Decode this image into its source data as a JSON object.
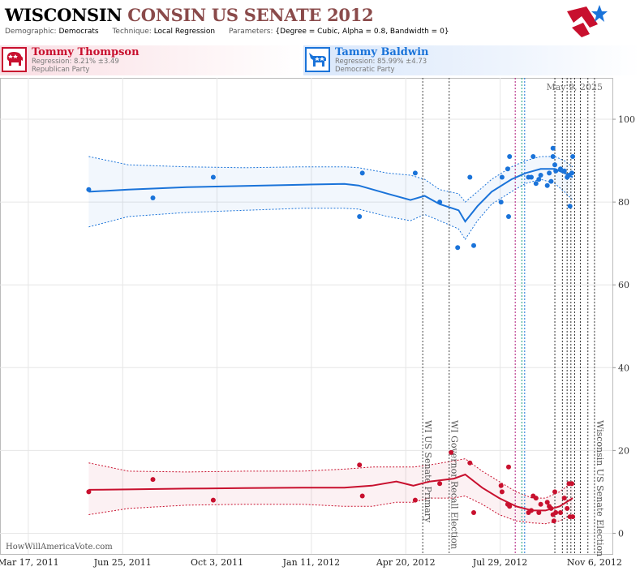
{
  "header": {
    "title_state": "WISCONSIN",
    "title_rest": "CONSIN US SENATE 2012",
    "demographic_label": "Demographic:",
    "demographic_value": "Democrats",
    "technique_label": "Technique:",
    "technique_value": "Local Regression",
    "parameters_label": "Parameters:",
    "parameters_value": "{Degree = Cubic, Alpha = 0.8, Bandwidth = 0}"
  },
  "candidates": {
    "republican": {
      "name": "Tommy Thompson",
      "regression": "Regression: 8.21% ±3.49",
      "party": "Republican Party",
      "color": "#c8102e"
    },
    "democrat": {
      "name": "Tammy Baldwin",
      "regression": "Regression: 85.99% ±4.73",
      "party": "Democratic Party",
      "color": "#1a73d9"
    }
  },
  "date_stamp": "May 9, 2025",
  "footer": {
    "brand": "HowWillAmericaVote.com"
  },
  "chart_data": {
    "type": "scatter",
    "x_axis": {
      "type": "date",
      "range": [
        "2011-02-15",
        "2012-11-25"
      ],
      "ticks": [
        {
          "date": "2011-03-17",
          "label": "Mar 17, 2011"
        },
        {
          "date": "2011-06-25",
          "label": "Jun 25, 2011"
        },
        {
          "date": "2011-10-03",
          "label": "Oct 3, 2011"
        },
        {
          "date": "2012-01-11",
          "label": "Jan 11, 2012"
        },
        {
          "date": "2012-04-20",
          "label": "Apr 20, 2012"
        },
        {
          "date": "2012-07-29",
          "label": "Jul 29, 2012"
        },
        {
          "date": "2012-11-06",
          "label": "Nov 6, 2012"
        }
      ]
    },
    "y_axis": {
      "position": "right",
      "ylim": [
        -5,
        110
      ],
      "ticks": [
        0,
        20,
        40,
        60,
        80,
        100
      ]
    },
    "grid": true,
    "events": [
      {
        "date": "2012-05-08",
        "label": "WI US Senate Primary"
      },
      {
        "date": "2012-06-05",
        "label": "WI Governor Recall Election"
      },
      {
        "date": "2012-11-06",
        "label": "Wisconsin US Senate Election"
      }
    ],
    "markers": [
      {
        "date": "2012-08-14",
        "color": "#b0177a"
      },
      {
        "date": "2012-08-21",
        "color": "#18a07a"
      },
      {
        "date": "2012-08-24",
        "color": "#1a73d9"
      },
      {
        "date": "2012-09-25",
        "color": "#333333"
      },
      {
        "date": "2012-10-03",
        "color": "#333333"
      },
      {
        "date": "2012-10-08",
        "color": "#333333"
      },
      {
        "date": "2012-10-12",
        "color": "#333333"
      },
      {
        "date": "2012-10-16",
        "color": "#333333"
      },
      {
        "date": "2012-10-22",
        "color": "#333333"
      },
      {
        "date": "2012-10-30",
        "color": "#333333"
      }
    ],
    "series": [
      {
        "name": "Tammy Baldwin",
        "color": "#1a73d9",
        "points": [
          [
            "2011-05-20",
            83
          ],
          [
            "2011-07-27",
            81
          ],
          [
            "2011-09-29",
            86
          ],
          [
            "2012-03-02",
            76.5
          ],
          [
            "2012-03-05",
            87
          ],
          [
            "2012-04-30",
            87
          ],
          [
            "2012-05-26",
            80
          ],
          [
            "2012-06-14",
            69
          ],
          [
            "2012-06-27",
            86
          ],
          [
            "2012-07-01",
            69.5
          ],
          [
            "2012-07-30",
            80
          ],
          [
            "2012-07-31",
            86
          ],
          [
            "2012-08-06",
            88
          ],
          [
            "2012-08-07",
            76.5
          ],
          [
            "2012-08-08",
            91
          ],
          [
            "2012-08-28",
            86
          ],
          [
            "2012-08-31",
            86
          ],
          [
            "2012-09-02",
            91
          ],
          [
            "2012-09-05",
            84.5
          ],
          [
            "2012-09-08",
            85.5
          ],
          [
            "2012-09-10",
            86.5
          ],
          [
            "2012-09-17",
            84
          ],
          [
            "2012-09-19",
            87
          ],
          [
            "2012-09-21",
            85
          ],
          [
            "2012-09-23",
            93
          ],
          [
            "2012-09-23",
            91
          ],
          [
            "2012-09-25",
            89
          ],
          [
            "2012-09-26",
            87.5
          ],
          [
            "2012-10-01",
            88
          ],
          [
            "2012-10-05",
            87.5
          ],
          [
            "2012-10-08",
            86
          ],
          [
            "2012-10-10",
            86.5
          ],
          [
            "2012-10-11",
            79
          ],
          [
            "2012-10-13",
            87
          ],
          [
            "2012-10-14",
            91
          ]
        ],
        "fit": [
          [
            "2011-05-20",
            82.5
          ],
          [
            "2011-07-01",
            83
          ],
          [
            "2011-09-01",
            83.6
          ],
          [
            "2011-11-01",
            83.9
          ],
          [
            "2012-01-01",
            84.2
          ],
          [
            "2012-02-15",
            84.4
          ],
          [
            "2012-03-01",
            84
          ],
          [
            "2012-04-01",
            82
          ],
          [
            "2012-04-25",
            80.5
          ],
          [
            "2012-05-10",
            81.5
          ],
          [
            "2012-05-26",
            79.5
          ],
          [
            "2012-06-15",
            78
          ],
          [
            "2012-06-22",
            75.3
          ],
          [
            "2012-07-05",
            79
          ],
          [
            "2012-07-20",
            82.5
          ],
          [
            "2012-08-10",
            85.5
          ],
          [
            "2012-08-25",
            87
          ],
          [
            "2012-09-10",
            88
          ],
          [
            "2012-09-25",
            88
          ],
          [
            "2012-10-05",
            87
          ],
          [
            "2012-10-14",
            86
          ]
        ],
        "upper": [
          [
            "2011-05-20",
            91
          ],
          [
            "2011-07-01",
            89
          ],
          [
            "2011-09-01",
            88.5
          ],
          [
            "2011-11-01",
            88.3
          ],
          [
            "2012-01-01",
            88.5
          ],
          [
            "2012-02-15",
            88.5
          ],
          [
            "2012-03-01",
            88.3
          ],
          [
            "2012-04-01",
            87
          ],
          [
            "2012-04-25",
            86.5
          ],
          [
            "2012-05-10",
            85.5
          ],
          [
            "2012-05-26",
            83
          ],
          [
            "2012-06-15",
            82
          ],
          [
            "2012-06-22",
            80
          ],
          [
            "2012-07-05",
            82.5
          ],
          [
            "2012-07-20",
            85.5
          ],
          [
            "2012-08-10",
            88.5
          ],
          [
            "2012-08-25",
            90
          ],
          [
            "2012-09-10",
            91
          ],
          [
            "2012-09-25",
            91
          ],
          [
            "2012-10-05",
            90
          ],
          [
            "2012-10-14",
            88.5
          ]
        ],
        "lower": [
          [
            "2011-05-20",
            74
          ],
          [
            "2011-07-01",
            76.5
          ],
          [
            "2011-09-01",
            77.5
          ],
          [
            "2011-11-01",
            78
          ],
          [
            "2012-01-01",
            78.5
          ],
          [
            "2012-02-15",
            78.5
          ],
          [
            "2012-03-01",
            78.3
          ],
          [
            "2012-04-01",
            76.5
          ],
          [
            "2012-04-25",
            75.5
          ],
          [
            "2012-05-10",
            77
          ],
          [
            "2012-05-26",
            75.5
          ],
          [
            "2012-06-15",
            73.5
          ],
          [
            "2012-06-22",
            71
          ],
          [
            "2012-07-05",
            75.5
          ],
          [
            "2012-07-20",
            79.5
          ],
          [
            "2012-08-10",
            82.5
          ],
          [
            "2012-08-25",
            84.5
          ],
          [
            "2012-09-10",
            85.5
          ],
          [
            "2012-09-25",
            84.5
          ],
          [
            "2012-10-05",
            82.5
          ],
          [
            "2012-10-14",
            80.5
          ]
        ]
      },
      {
        "name": "Tommy Thompson",
        "color": "#c8102e",
        "points": [
          [
            "2011-05-20",
            10
          ],
          [
            "2011-07-27",
            13
          ],
          [
            "2011-09-29",
            8
          ],
          [
            "2012-03-02",
            16.5
          ],
          [
            "2012-03-05",
            9
          ],
          [
            "2012-04-30",
            8
          ],
          [
            "2012-05-26",
            12
          ],
          [
            "2012-06-07",
            19.5
          ],
          [
            "2012-06-27",
            17
          ],
          [
            "2012-07-01",
            5
          ],
          [
            "2012-07-30",
            11.5
          ],
          [
            "2012-07-31",
            10
          ],
          [
            "2012-08-06",
            7
          ],
          [
            "2012-08-07",
            16
          ],
          [
            "2012-08-08",
            6.5
          ],
          [
            "2012-08-28",
            5
          ],
          [
            "2012-08-31",
            5.5
          ],
          [
            "2012-09-02",
            9
          ],
          [
            "2012-09-05",
            8.5
          ],
          [
            "2012-09-08",
            5
          ],
          [
            "2012-09-10",
            7
          ],
          [
            "2012-09-17",
            7.5
          ],
          [
            "2012-09-19",
            6.5
          ],
          [
            "2012-09-21",
            6
          ],
          [
            "2012-09-23",
            4.5
          ],
          [
            "2012-09-24",
            3
          ],
          [
            "2012-09-25",
            10
          ],
          [
            "2012-09-26",
            5
          ],
          [
            "2012-10-01",
            5
          ],
          [
            "2012-10-05",
            8.5
          ],
          [
            "2012-10-08",
            6
          ],
          [
            "2012-10-10",
            12
          ],
          [
            "2012-10-11",
            4
          ],
          [
            "2012-10-13",
            12
          ],
          [
            "2012-10-14",
            4
          ]
        ],
        "fit": [
          [
            "2011-05-20",
            10.5
          ],
          [
            "2011-07-01",
            10.6
          ],
          [
            "2011-09-01",
            10.8
          ],
          [
            "2011-11-01",
            10.9
          ],
          [
            "2012-01-01",
            11
          ],
          [
            "2012-02-15",
            11
          ],
          [
            "2012-03-15",
            11.5
          ],
          [
            "2012-04-10",
            12.5
          ],
          [
            "2012-04-28",
            11.5
          ],
          [
            "2012-05-15",
            12.5
          ],
          [
            "2012-06-10",
            13.2
          ],
          [
            "2012-06-22",
            14.2
          ],
          [
            "2012-07-10",
            11
          ],
          [
            "2012-07-28",
            8.5
          ],
          [
            "2012-08-15",
            6.5
          ],
          [
            "2012-09-01",
            5.5
          ],
          [
            "2012-09-15",
            5.5
          ],
          [
            "2012-09-30",
            6.5
          ],
          [
            "2012-10-14",
            8.5
          ]
        ],
        "upper": [
          [
            "2011-05-20",
            17
          ],
          [
            "2011-07-01",
            15
          ],
          [
            "2011-09-01",
            14.8
          ],
          [
            "2011-11-01",
            15
          ],
          [
            "2012-01-01",
            15
          ],
          [
            "2012-02-15",
            15.5
          ],
          [
            "2012-03-15",
            16
          ],
          [
            "2012-04-10",
            16
          ],
          [
            "2012-04-28",
            16
          ],
          [
            "2012-05-15",
            16.5
          ],
          [
            "2012-06-10",
            17.5
          ],
          [
            "2012-06-22",
            18
          ],
          [
            "2012-07-10",
            15
          ],
          [
            "2012-07-28",
            12.5
          ],
          [
            "2012-08-15",
            10
          ],
          [
            "2012-09-01",
            8.5
          ],
          [
            "2012-09-15",
            8.5
          ],
          [
            "2012-09-30",
            10
          ],
          [
            "2012-10-14",
            12.5
          ]
        ],
        "lower": [
          [
            "2011-05-20",
            4.5
          ],
          [
            "2011-07-01",
            6
          ],
          [
            "2011-09-01",
            6.8
          ],
          [
            "2011-11-01",
            7
          ],
          [
            "2012-01-01",
            7
          ],
          [
            "2012-02-15",
            6.5
          ],
          [
            "2012-03-15",
            6.5
          ],
          [
            "2012-04-10",
            7.5
          ],
          [
            "2012-04-28",
            7.5
          ],
          [
            "2012-05-15",
            8.5
          ],
          [
            "2012-06-10",
            8.5
          ],
          [
            "2012-06-22",
            9
          ],
          [
            "2012-07-10",
            7
          ],
          [
            "2012-07-28",
            4.5
          ],
          [
            "2012-08-15",
            3
          ],
          [
            "2012-09-01",
            2.5
          ],
          [
            "2012-09-15",
            2.3
          ],
          [
            "2012-09-30",
            3
          ],
          [
            "2012-10-14",
            4.5
          ]
        ]
      }
    ]
  }
}
